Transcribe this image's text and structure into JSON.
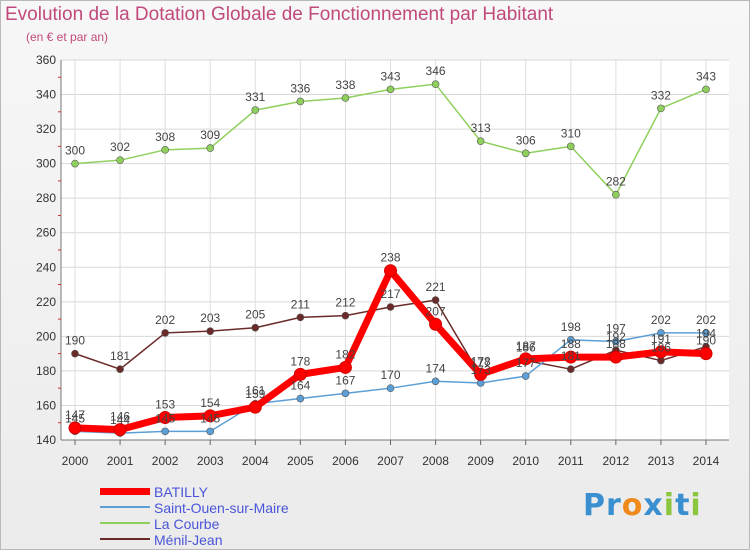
{
  "title": "Evolution de la Dotation Globale de Fonctionnement par Habitant",
  "subtitle": "(en € et par an)",
  "brand": {
    "letters": [
      {
        "ch": "P",
        "color": "#3a8fd0"
      },
      {
        "ch": "r",
        "color": "#3a8fd0"
      },
      {
        "ch": "o",
        "color": "#f08a1c"
      },
      {
        "ch": "x",
        "color": "#3a8fd0"
      },
      {
        "ch": "i",
        "color": "#8cc63f"
      },
      {
        "ch": "t",
        "color": "#3a8fd0"
      },
      {
        "ch": "i",
        "color": "#8cc63f"
      }
    ]
  },
  "chart_data": {
    "type": "line",
    "x": [
      "2000",
      "2001",
      "2002",
      "2003",
      "2004",
      "2005",
      "2006",
      "2007",
      "2008",
      "2009",
      "2010",
      "2011",
      "2012",
      "2013",
      "2014"
    ],
    "ylim": [
      140,
      360
    ],
    "yticks": [
      140,
      160,
      180,
      200,
      220,
      240,
      260,
      280,
      300,
      320,
      340,
      360
    ],
    "grid": true,
    "legend_position": "bottom-left",
    "series": [
      {
        "name": "La Courbe",
        "color": "#8fd05c",
        "values": [
          300,
          302,
          308,
          309,
          331,
          336,
          338,
          343,
          346,
          313,
          306,
          310,
          282,
          332,
          343
        ]
      },
      {
        "name": "Ménil-Jean",
        "color": "#6b2a2a",
        "values": [
          190,
          181,
          202,
          203,
          205,
          211,
          212,
          217,
          221,
          177,
          186,
          181,
          192,
          186,
          194
        ]
      },
      {
        "name": "Saint-Ouen-sur-Maire",
        "color": "#5b9fd6",
        "values": [
          145,
          144,
          145,
          145,
          161,
          164,
          167,
          170,
          174,
          173,
          177,
          198,
          197,
          202,
          202
        ]
      },
      {
        "name": "BATILLY",
        "color": "#ff0000",
        "values": [
          147,
          146,
          153,
          154,
          159,
          178,
          182,
          238,
          207,
          178,
          187,
          188,
          188,
          191,
          190
        ]
      }
    ],
    "data_labels": [
      [
        "300",
        "302",
        "308",
        "309",
        "331",
        "336",
        "338",
        "343",
        "346",
        "313",
        "306",
        "310",
        "282",
        "332",
        "343"
      ],
      [
        "190",
        "181",
        "202",
        "203",
        "205",
        "211",
        "212",
        "217",
        "221",
        "177",
        "186",
        "181",
        "192",
        "186",
        "194"
      ],
      [
        "145",
        "144",
        "145",
        "145",
        "161",
        "164",
        "167",
        "170",
        "174",
        "173",
        "177",
        "198",
        "197",
        "202",
        "202"
      ],
      [
        "147",
        "146",
        "153",
        "154",
        "159",
        "178",
        "182",
        "238",
        "207",
        "178",
        "187",
        "188",
        "188",
        "191",
        "190"
      ]
    ]
  },
  "legend": [
    {
      "label": "BATILLY",
      "color": "#ff0000",
      "width": 7
    },
    {
      "label": "Saint-Ouen-sur-Maire",
      "color": "#5b9fd6",
      "width": 2
    },
    {
      "label": "La Courbe",
      "color": "#8fd05c",
      "width": 2
    },
    {
      "label": "Ménil-Jean",
      "color": "#6b2a2a",
      "width": 2
    }
  ]
}
